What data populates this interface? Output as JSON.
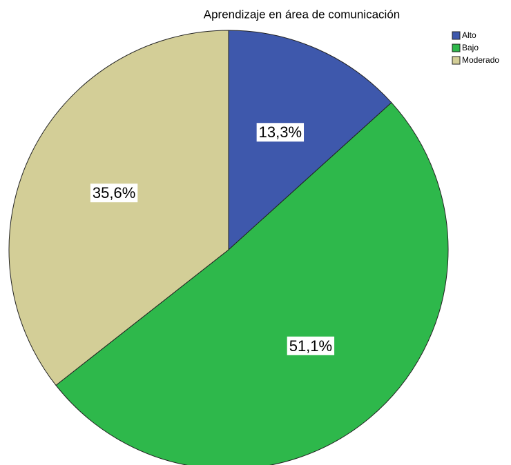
{
  "chart_data": {
    "type": "pie",
    "title": "Aprendizaje en área de comunicación",
    "categories": [
      "Alto",
      "Bajo",
      "Moderado"
    ],
    "values": [
      13.3,
      51.1,
      35.6
    ],
    "value_labels": [
      "13,3%",
      "51,1%",
      "35,6%"
    ],
    "colors": [
      "#3e58ac",
      "#2eb84b",
      "#d3ce97"
    ],
    "legend": "top-right"
  }
}
